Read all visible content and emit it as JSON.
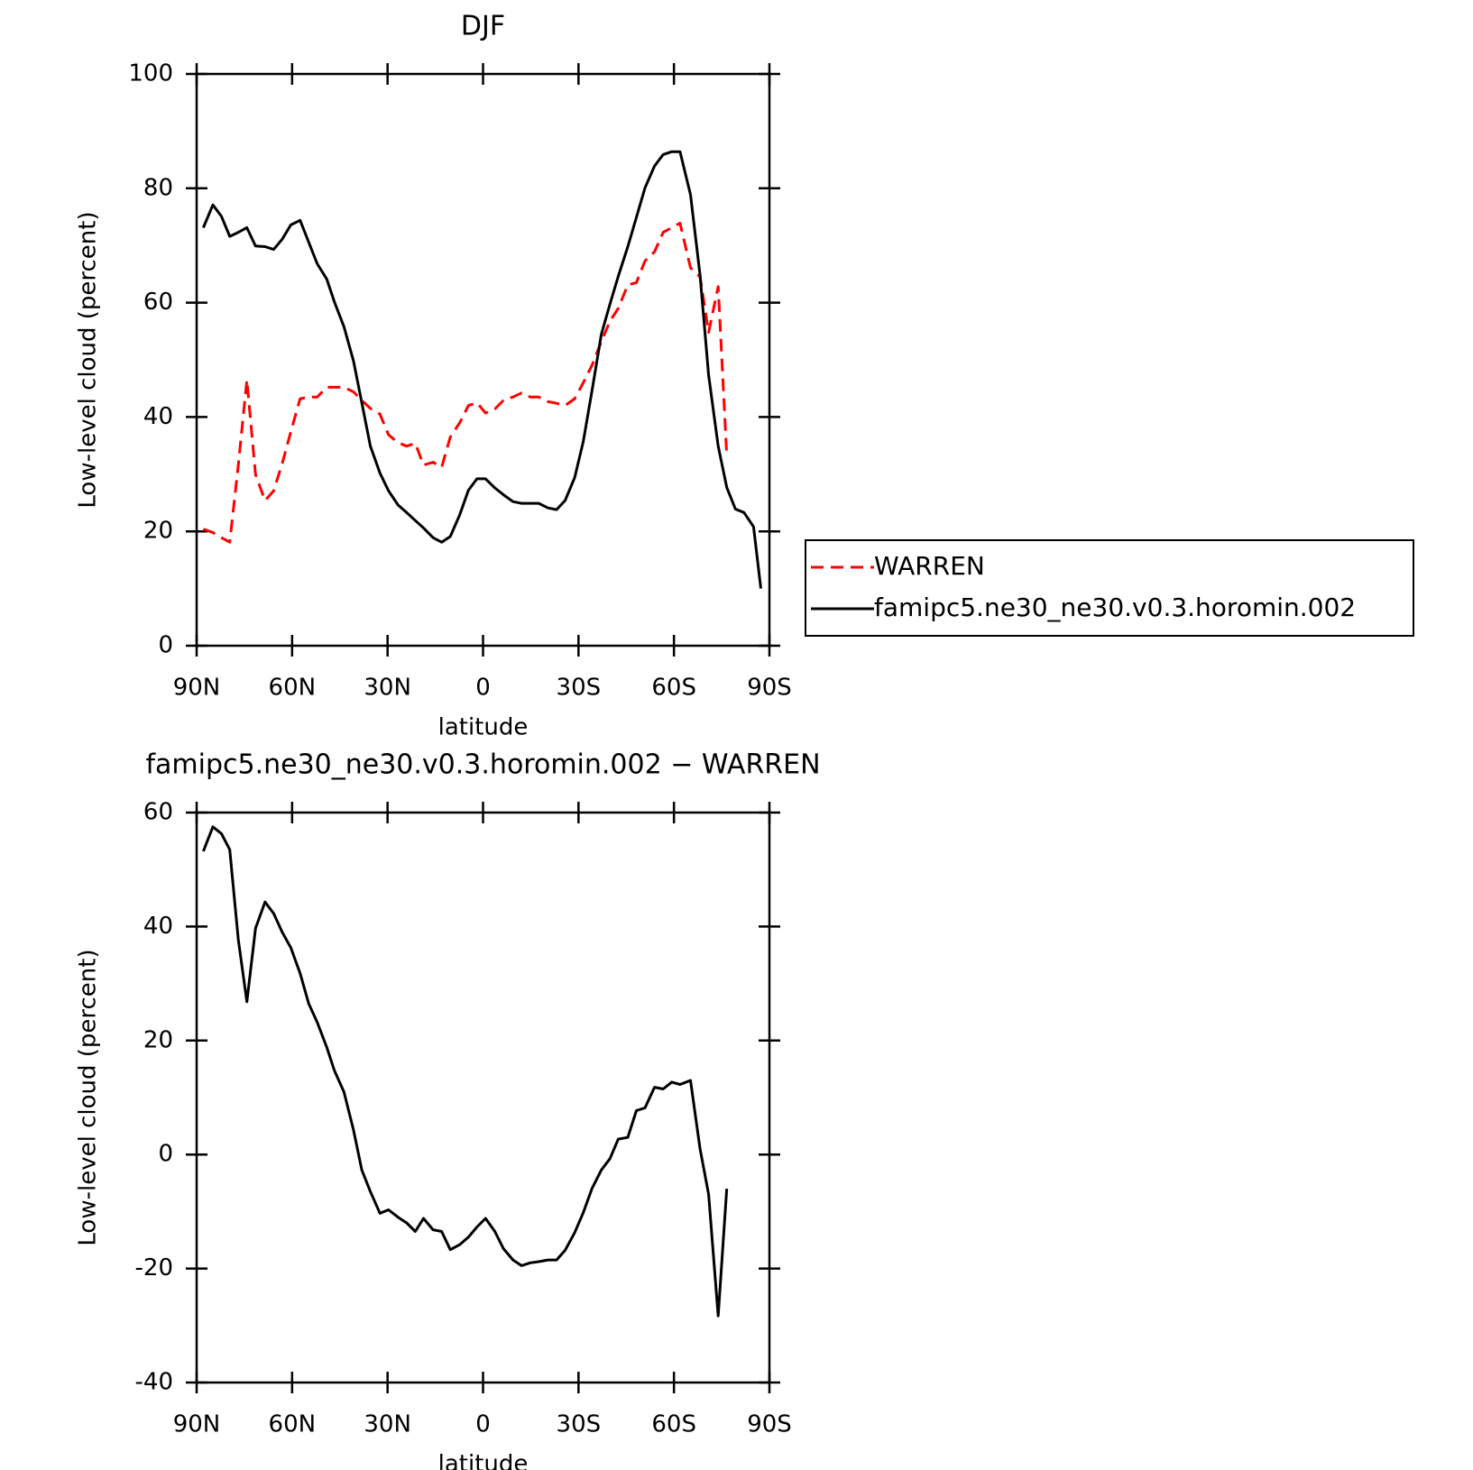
{
  "chart_data": [
    {
      "type": "line",
      "title": "DJF",
      "y_label": "Low-level cloud (percent)",
      "x_label": "latitude",
      "x": [
        87.9,
        84.9,
        82.2,
        79.6,
        76.9,
        74.2,
        71.5,
        68.5,
        65.8,
        63.1,
        60.4,
        57.5,
        54.8,
        52.1,
        49.1,
        46.7,
        43.7,
        40.7,
        38.1,
        35.4,
        32.4,
        29.7,
        26.7,
        24.0,
        21.3,
        18.7,
        15.7,
        13.0,
        10.3,
        7.3,
        4.6,
        1.9,
        -0.8,
        -3.7,
        -6.4,
        -9.4,
        -12.1,
        -14.8,
        -17.5,
        -20.4,
        -23.1,
        -25.8,
        -28.8,
        -31.5,
        -34.2,
        -37.2,
        -39.9,
        -42.5,
        -45.5,
        -48.2,
        -50.9,
        -53.9,
        -56.6,
        -59.3,
        -61.9,
        -65.2,
        -68.2,
        -70.9,
        -73.9,
        -76.6,
        -79.3,
        -82.0,
        -85.0,
        -87.3
      ],
      "series": [
        {
          "name": "WARREN",
          "color": "#ff0000",
          "dashed": true,
          "values": [
            20.4,
            19.8,
            18.9,
            18.1,
            31.6,
            46.5,
            29.9,
            25.4,
            27.1,
            31.9,
            37.4,
            43.2,
            43.5,
            43.5,
            45.2,
            45.2,
            45.2,
            44.4,
            42.9,
            41.5,
            40.5,
            36.9,
            35.5,
            34.9,
            35.4,
            31.6,
            32.1,
            31.2,
            36.5,
            39.0,
            42.0,
            42.5,
            40.7,
            41.4,
            42.9,
            43.5,
            44.2,
            43.5,
            43.5,
            42.7,
            42.4,
            42.0,
            43.2,
            46.0,
            49.0,
            53.2,
            56.8,
            59.0,
            63.1,
            63.5,
            67.3,
            68.9,
            72.3,
            73.1,
            73.9,
            66.1,
            64.5,
            54.8,
            62.8,
            33.2,
            null,
            null,
            null,
            null
          ]
        },
        {
          "name": "famipc5.ne30_ne30.v0.3.horomin.002",
          "color": "#000000",
          "dashed": false,
          "values": [
            73.1,
            77.1,
            75.1,
            71.6,
            72.3,
            73.1,
            69.9,
            69.8,
            69.3,
            71.1,
            73.6,
            74.4,
            70.6,
            66.8,
            64.1,
            60.1,
            55.8,
            49.8,
            42.5,
            34.9,
            30.2,
            27.1,
            24.6,
            23.3,
            21.9,
            20.6,
            18.9,
            18.1,
            19.1,
            22.9,
            27.2,
            29.2,
            29.2,
            27.6,
            26.4,
            25.2,
            24.9,
            24.9,
            24.9,
            24.1,
            23.8,
            25.4,
            29.4,
            35.7,
            44.5,
            54.5,
            59.8,
            64.6,
            69.8,
            74.9,
            80.1,
            83.9,
            85.9,
            86.4,
            86.4,
            78.9,
            64.8,
            47.3,
            34.9,
            27.7,
            23.9,
            23.3,
            20.8,
            10.0
          ]
        }
      ],
      "xlim": [
        90,
        -90
      ],
      "xticks": [
        {
          "value": 90,
          "label": "90N"
        },
        {
          "value": 60,
          "label": "60N"
        },
        {
          "value": 30,
          "label": "30N"
        },
        0,
        {
          "value": -30,
          "label": "30S"
        },
        {
          "value": -60,
          "label": "60S"
        },
        {
          "value": -90,
          "label": "90S"
        }
      ],
      "ylim": [
        0,
        100
      ],
      "yticks": [
        0,
        20,
        40,
        60,
        80,
        100
      ],
      "legend": "outside-right"
    },
    {
      "type": "line",
      "title": "famipc5.ne30_ne30.v0.3.horomin.002 − WARREN",
      "y_label": "Low-level cloud (percent)",
      "x_label": "latitude",
      "x": [
        87.9,
        84.9,
        82.2,
        79.6,
        76.9,
        74.2,
        71.5,
        68.5,
        65.8,
        63.1,
        60.4,
        57.5,
        54.8,
        52.1,
        49.1,
        46.7,
        43.7,
        40.7,
        38.1,
        35.4,
        32.4,
        29.7,
        26.7,
        24.0,
        21.3,
        18.7,
        15.7,
        13.0,
        10.3,
        7.3,
        4.6,
        1.9,
        -0.8,
        -3.7,
        -6.4,
        -9.4,
        -12.1,
        -14.8,
        -17.5,
        -20.4,
        -23.1,
        -25.8,
        -28.8,
        -31.5,
        -34.2,
        -37.2,
        -39.9,
        -42.5,
        -45.5,
        -48.2,
        -50.9,
        -53.9,
        -56.6,
        -59.3,
        -61.9,
        -65.2,
        -68.2,
        -70.9,
        -73.9,
        -76.6,
        -79.3,
        -82.0,
        -85.0,
        -87.3
      ],
      "values": [
        53.2,
        57.5,
        56.3,
        53.5,
        37.7,
        26.8,
        39.7,
        44.3,
        42.3,
        39.0,
        36.3,
        31.8,
        26.5,
        23.2,
        18.8,
        14.7,
        11.0,
        4.3,
        -2.7,
        -6.5,
        -10.3,
        -9.7,
        -11.0,
        -12.0,
        -13.5,
        -11.2,
        -13.2,
        -13.5,
        -16.7,
        -15.8,
        -14.5,
        -12.7,
        -11.2,
        -13.5,
        -16.5,
        -18.5,
        -19.5,
        -19.0,
        -18.8,
        -18.5,
        -18.5,
        -16.8,
        -13.7,
        -10.2,
        -6.0,
        -2.7,
        -0.7,
        2.7,
        3.0,
        7.7,
        8.2,
        11.8,
        11.5,
        12.7,
        12.3,
        13.0,
        1.0,
        -7.0,
        -28.3,
        -6.0,
        null,
        null,
        null,
        null
      ],
      "color": "#000000",
      "xlim": [
        90,
        -90
      ],
      "xticks": [
        {
          "value": 90,
          "label": "90N"
        },
        {
          "value": 60,
          "label": "60N"
        },
        {
          "value": 30,
          "label": "30N"
        },
        0,
        {
          "value": -30,
          "label": "30S"
        },
        {
          "value": -60,
          "label": "60S"
        },
        {
          "value": -90,
          "label": "90S"
        }
      ],
      "ylim": [
        -40,
        60
      ],
      "yticks": [
        -40,
        -20,
        0,
        20,
        40,
        60
      ]
    }
  ]
}
